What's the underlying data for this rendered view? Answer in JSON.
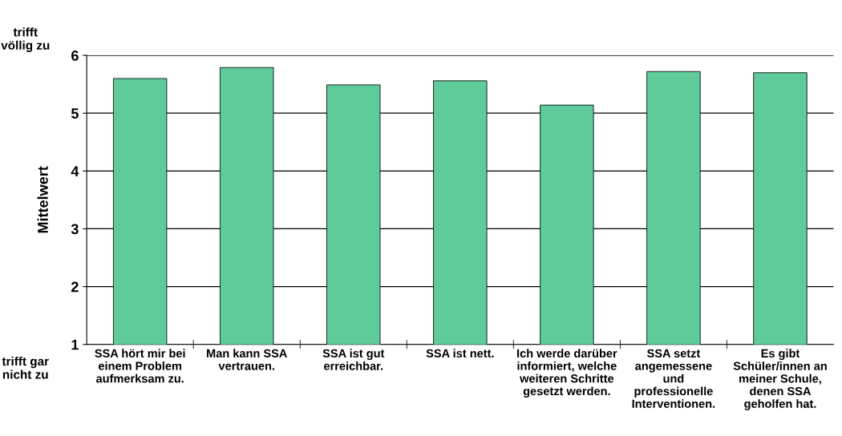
{
  "chart_data": {
    "type": "bar",
    "ylabel": "Mittelwert",
    "categories": [
      "SSA hört mir bei\neinem Problem\naufmerksam zu.",
      "Man kann SSA\nvertrauen.",
      "SSA ist gut\nerreichbar.",
      "SSA ist nett.",
      "Ich werde darüber\ninformiert, welche\nweiteren Schritte\ngesetzt werden.",
      "SSA setzt\nangemessene\nund\nprofessionelle\nInterventionen.",
      "Es gibt\nSchüler/innen an\nmeiner Schule,\ndenen SSA\ngeholfen hat."
    ],
    "values": [
      5.6,
      5.79,
      5.49,
      5.56,
      5.14,
      5.72,
      5.7
    ],
    "color": "#5fcb9b",
    "ylim": [
      1,
      6
    ],
    "yticks": [
      1,
      2,
      3,
      4,
      5,
      6
    ],
    "grid": "y",
    "annotations": [
      "trifft\nvöllig zu",
      "trifft gar\nnicht zu"
    ]
  }
}
